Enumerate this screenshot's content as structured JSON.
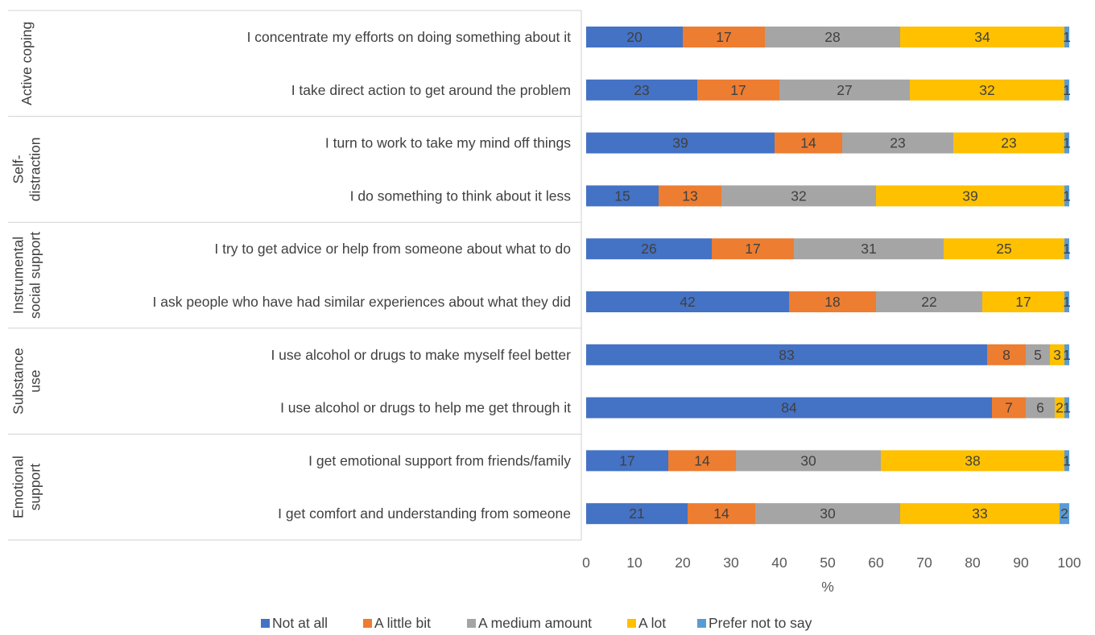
{
  "chart_data": {
    "type": "bar",
    "orientation": "horizontal",
    "stacked": true,
    "title": "",
    "xlabel": "%",
    "xlim": [
      0,
      100
    ],
    "x_ticks": [
      0,
      10,
      20,
      30,
      40,
      50,
      60,
      70,
      80,
      90,
      100
    ],
    "grid": false,
    "legend_position": "bottom",
    "groups": [
      {
        "name": "Active coping",
        "label_lines": [
          "Active coping"
        ],
        "items": [
          0,
          1
        ]
      },
      {
        "name": "Self-distraction",
        "label_lines": [
          "Self-",
          "distraction"
        ],
        "items": [
          2,
          3
        ]
      },
      {
        "name": "Instrumental social support",
        "label_lines": [
          "Instrumental",
          "social support"
        ],
        "items": [
          4,
          5
        ]
      },
      {
        "name": "Substance use",
        "label_lines": [
          "Substance",
          "use"
        ],
        "items": [
          6,
          7
        ]
      },
      {
        "name": "Emotional support",
        "label_lines": [
          "Emotional",
          "support"
        ],
        "items": [
          8,
          9
        ]
      }
    ],
    "categories": [
      "I concentrate my efforts on doing something about it",
      "I take direct action to get around the problem",
      "I turn to work to take my mind off things",
      "I do something to think about it less",
      "I try to get advice or help from someone about what to do",
      "I ask people who have had similar experiences about what they did",
      "I use alcohol or drugs to make myself feel better",
      "I use alcohol or drugs to help me get through it",
      "I get emotional support from friends/family",
      "I get comfort and understanding from someone"
    ],
    "series": [
      {
        "name": "Not at all",
        "color": "#4472c4",
        "values": [
          20,
          23,
          39,
          15,
          26,
          42,
          83,
          84,
          17,
          21
        ]
      },
      {
        "name": "A little bit",
        "color": "#ed7d31",
        "values": [
          17,
          17,
          14,
          13,
          17,
          18,
          8,
          7,
          14,
          14
        ]
      },
      {
        "name": "A medium amount",
        "color": "#a5a5a5",
        "values": [
          28,
          27,
          23,
          32,
          31,
          22,
          5,
          6,
          30,
          30
        ]
      },
      {
        "name": "A lot",
        "color": "#ffc000",
        "values": [
          34,
          32,
          23,
          39,
          25,
          17,
          3,
          2,
          38,
          33
        ]
      },
      {
        "name": "Prefer not to say",
        "color": "#5b9bd5",
        "values": [
          1,
          1,
          1,
          1,
          1,
          1,
          1,
          1,
          1,
          2
        ]
      }
    ]
  }
}
